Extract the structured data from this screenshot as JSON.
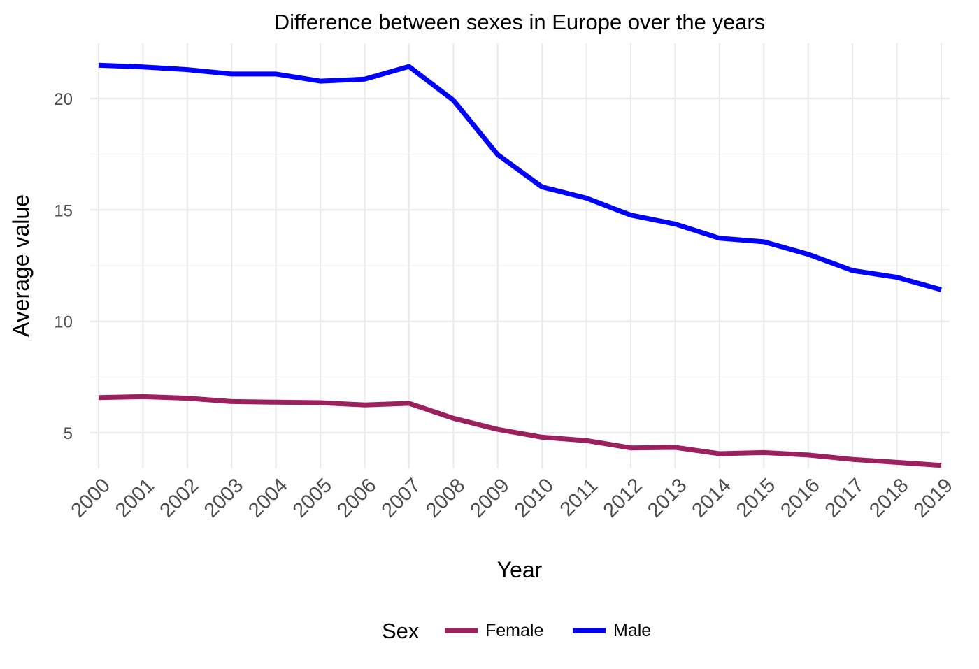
{
  "chart_data": {
    "type": "line",
    "title": "Difference between sexes in Europe over the years",
    "xlabel": "Year",
    "ylabel": "Average value",
    "x": [
      2000,
      2001,
      2002,
      2003,
      2004,
      2005,
      2006,
      2007,
      2008,
      2009,
      2010,
      2011,
      2012,
      2013,
      2014,
      2015,
      2016,
      2017,
      2018,
      2019
    ],
    "x_tick_labels": [
      "2000",
      "2001",
      "2002",
      "2003",
      "2004",
      "2005",
      "2006",
      "2007",
      "2008",
      "2009",
      "2010",
      "2011",
      "2012",
      "2013",
      "2014",
      "2015",
      "2016",
      "2017",
      "2018",
      "2019"
    ],
    "y_ticks": [
      5,
      10,
      15,
      20
    ],
    "y_tick_labels": [
      "5",
      "10",
      "15",
      "20"
    ],
    "ylim": [
      3.1,
      22.5
    ],
    "grid": true,
    "legend": {
      "title": "Sex",
      "position": "bottom",
      "entries": [
        "Female",
        "Male"
      ]
    },
    "series": [
      {
        "name": "Female",
        "color": "#9c1f5e",
        "values": [
          6.58,
          6.62,
          6.55,
          6.4,
          6.37,
          6.35,
          6.25,
          6.32,
          5.65,
          5.15,
          4.8,
          4.65,
          4.32,
          4.34,
          4.06,
          4.11,
          4.0,
          3.8,
          3.67,
          3.53
        ]
      },
      {
        "name": "Male",
        "color": "#0000ff",
        "values": [
          21.5,
          21.42,
          21.3,
          21.1,
          21.1,
          20.78,
          20.87,
          21.44,
          19.92,
          17.48,
          16.03,
          15.53,
          14.77,
          14.37,
          13.73,
          13.57,
          13.01,
          12.28,
          11.98,
          11.42
        ]
      }
    ]
  }
}
